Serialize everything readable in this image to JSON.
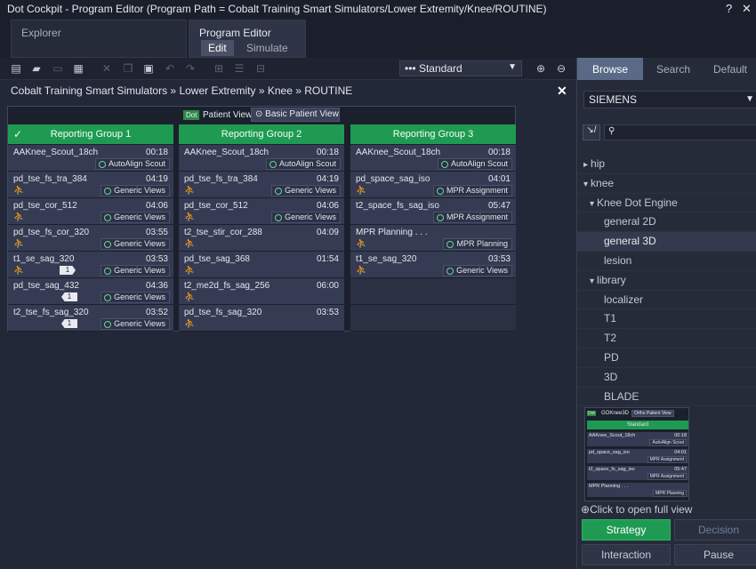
{
  "window": {
    "title": "Dot Cockpit - Program Editor (Program Path = Cobalt Training Smart Simulators/Lower Extremity/Knee/ROUTINE)",
    "help": "?",
    "close": "✕"
  },
  "top_tabs": {
    "explorer": "Explorer",
    "program_editor": "Program Editor",
    "edit": "Edit",
    "simulate": "Simulate"
  },
  "toolbar": {
    "strategy_value": "Standard"
  },
  "breadcrumb": {
    "items": [
      "Cobalt Training Smart Simulators",
      "Lower Extremity",
      "Knee",
      "ROUTINE"
    ],
    "separator": "»"
  },
  "patient_view": {
    "badge": "Dot",
    "label": "Patient View",
    "button": "Basic Patient View"
  },
  "groups": [
    {
      "name": "Reporting Group 1",
      "steps": [
        {
          "name": "AAKnee_Scout_18ch",
          "time": "00:18",
          "action": "AutoAlign Scout",
          "person": false,
          "flag": ""
        },
        {
          "name": "pd_tse_fs_tra_384",
          "time": "04:19",
          "action": "Generic Views",
          "person": true,
          "flag": ""
        },
        {
          "name": "pd_tse_cor_512",
          "time": "04:06",
          "action": "Generic Views",
          "person": true,
          "flag": ""
        },
        {
          "name": "pd_tse_fs_cor_320",
          "time": "03:55",
          "action": "Generic Views",
          "person": true,
          "flag": ""
        },
        {
          "name": "t1_se_sag_320",
          "time": "03:53",
          "action": "Generic Views",
          "person": true,
          "flag": "1"
        },
        {
          "name": "pd_tse_sag_432",
          "time": "04:36",
          "action": "Generic Views",
          "person": false,
          "flag": "1"
        },
        {
          "name": "t2_tse_fs_sag_320",
          "time": "03:52",
          "action": "Generic Views",
          "person": false,
          "flag": "1"
        }
      ]
    },
    {
      "name": "Reporting Group 2",
      "steps": [
        {
          "name": "AAKnee_Scout_18ch",
          "time": "00:18",
          "action": "AutoAlign Scout",
          "person": false,
          "flag": ""
        },
        {
          "name": "pd_tse_fs_tra_384",
          "time": "04:19",
          "action": "Generic Views",
          "person": true,
          "flag": ""
        },
        {
          "name": "pd_tse_cor_512",
          "time": "04:06",
          "action": "Generic Views",
          "person": true,
          "flag": ""
        },
        {
          "name": "t2_tse_stir_cor_288",
          "time": "04:09",
          "action": "",
          "person": true,
          "flag": ""
        },
        {
          "name": "pd_tse_sag_368",
          "time": "01:54",
          "action": "",
          "person": true,
          "flag": ""
        },
        {
          "name": "t2_me2d_fs_sag_256",
          "time": "06:00",
          "action": "",
          "person": true,
          "flag": ""
        },
        {
          "name": "pd_tse_fs_sag_320",
          "time": "03:53",
          "action": "",
          "person": true,
          "flag": ""
        }
      ]
    },
    {
      "name": "Reporting Group 3",
      "steps": [
        {
          "name": "AAKnee_Scout_18ch",
          "time": "00:18",
          "action": "AutoAlign Scout",
          "person": false,
          "flag": ""
        },
        {
          "name": "pd_space_sag_iso",
          "time": "04:01",
          "action": "MPR Assignment",
          "person": true,
          "flag": ""
        },
        {
          "name": "t2_space_fs_sag_iso",
          "time": "05:47",
          "action": "MPR Assignment",
          "person": false,
          "flag": ""
        },
        {
          "name": "MPR Planning . . .",
          "time": "",
          "action": "MPR Planning",
          "person": true,
          "flag": ""
        },
        {
          "name": "t1_se_sag_320",
          "time": "03:53",
          "action": "Generic Views",
          "person": true,
          "flag": ""
        }
      ]
    }
  ],
  "right_panel": {
    "tabs": [
      "Browse",
      "Search",
      "Default"
    ],
    "vendor": "SIEMENS",
    "filter_icon": "↘/",
    "tree": [
      {
        "label": "hip",
        "level": 0,
        "arrow": "▸",
        "selected": false
      },
      {
        "label": "knee",
        "level": 0,
        "arrow": "▾",
        "selected": false
      },
      {
        "label": "Knee Dot Engine",
        "level": 1,
        "arrow": "▾",
        "selected": false
      },
      {
        "label": "general 2D",
        "level": 2,
        "arrow": "",
        "selected": false
      },
      {
        "label": "general 3D",
        "level": 2,
        "arrow": "",
        "selected": true
      },
      {
        "label": "lesion",
        "level": 2,
        "arrow": "",
        "selected": false
      },
      {
        "label": "library",
        "level": 1,
        "arrow": "▾",
        "selected": false
      },
      {
        "label": "localizer",
        "level": 2,
        "arrow": "",
        "selected": false
      },
      {
        "label": "T1",
        "level": 2,
        "arrow": "",
        "selected": false
      },
      {
        "label": "T2",
        "level": 2,
        "arrow": "",
        "selected": false
      },
      {
        "label": "PD",
        "level": 2,
        "arrow": "",
        "selected": false
      },
      {
        "label": "3D",
        "level": 2,
        "arrow": "",
        "selected": false
      },
      {
        "label": "BLADE",
        "level": 2,
        "arrow": "",
        "selected": false
      }
    ],
    "preview": {
      "badge": "Dot",
      "title": "GOKnee3D",
      "button": "Ortho Patient View",
      "group": "Standard",
      "rows": [
        {
          "name": "AAKnee_Scout_18ch",
          "time": "00:18",
          "action": "AutoAlign Scout"
        },
        {
          "name": "pd_space_sag_iso",
          "time": "04:01",
          "action": "MPR Assignment"
        },
        {
          "name": "t2_space_fs_sag_iso",
          "time": "05:47",
          "action": "MPR Assignment"
        },
        {
          "name": "MPR Planning . . .",
          "time": "",
          "action": "MPR Planning"
        }
      ],
      "caption": "Click to open full view"
    },
    "buttons": {
      "strategy": "Strategy",
      "decision": "Decision",
      "interaction": "Interaction",
      "pause": "Pause"
    }
  }
}
